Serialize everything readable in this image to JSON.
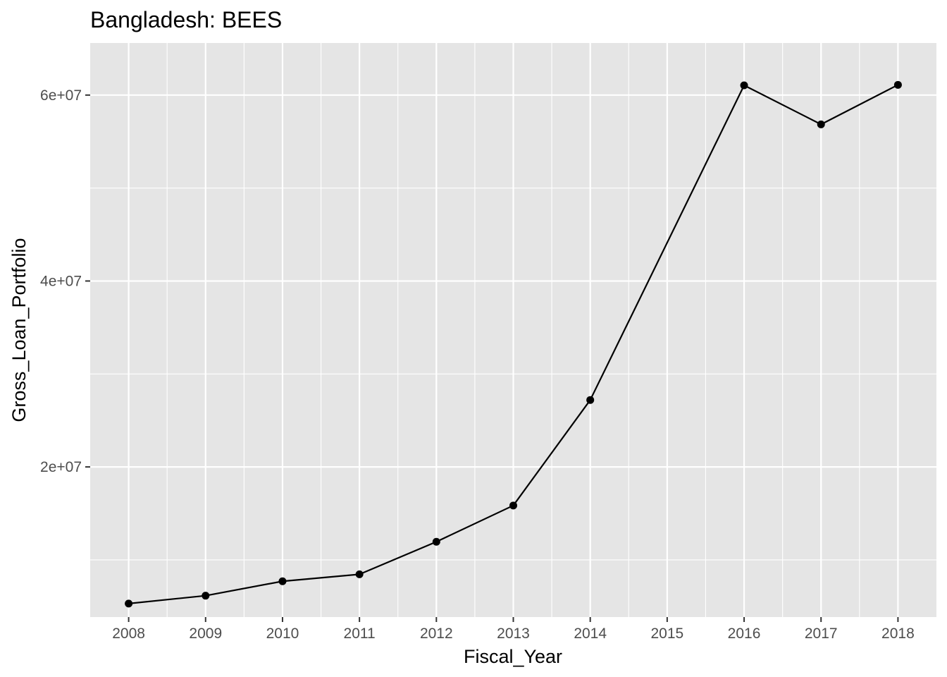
{
  "chart_data": {
    "type": "line",
    "title": "Bangladesh:  BEES",
    "xlabel": "Fiscal_Year",
    "ylabel": "Gross_Loan_Portfolio",
    "x": [
      2008,
      2009,
      2010,
      2011,
      2012,
      2013,
      2014,
      2016,
      2017,
      2018
    ],
    "values": [
      5300000,
      6150000,
      7700000,
      8450000,
      11950000,
      15850000,
      27200000,
      61050000,
      56850000,
      61100000
    ],
    "x_ticks": [
      2008,
      2009,
      2010,
      2011,
      2012,
      2013,
      2014,
      2015,
      2016,
      2017,
      2018
    ],
    "x_tick_labels": [
      "2008",
      "2009",
      "2010",
      "2011",
      "2012",
      "2013",
      "2014",
      "2015",
      "2016",
      "2017",
      "2018"
    ],
    "y_ticks": [
      20000000,
      40000000,
      60000000
    ],
    "y_tick_labels": [
      "2e+07",
      "4e+07",
      "6e+07"
    ],
    "xlim": [
      2007.5,
      2018.5
    ],
    "ylim": [
      3850000,
      65600000
    ],
    "grid": true,
    "colors": {
      "panel_background": "#e5e5e5",
      "grid": "#ffffff",
      "line": "#000000",
      "point": "#000000",
      "tick_text": "#4d4d4d",
      "tick_mark": "#333333"
    }
  }
}
